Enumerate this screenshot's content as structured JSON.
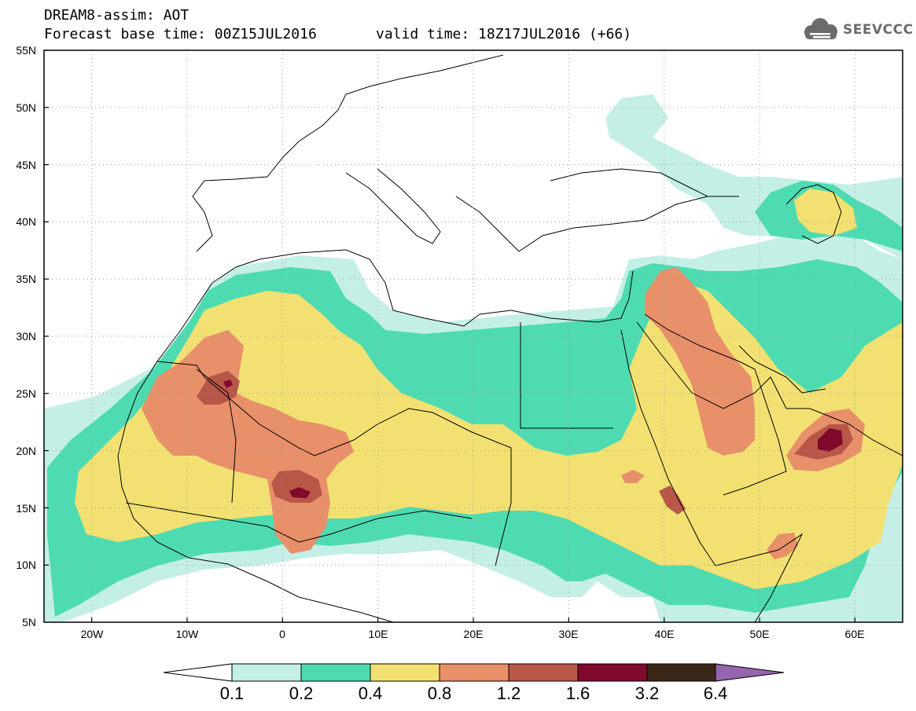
{
  "title": {
    "model_line": "DREAM8-assim: AOT",
    "base_time_line": "Forecast base time: 00Z15JUL2016",
    "valid_time_line": "valid time: 18Z17JUL2016 (+66)"
  },
  "logo": {
    "text": "SEEVCCC",
    "icon": "cloud-icon"
  },
  "map": {
    "lon_range": [
      -25,
      65
    ],
    "lat_range": [
      5,
      55
    ],
    "gridlines": "dotted",
    "lat_labels": [
      "55N",
      "50N",
      "45N",
      "40N",
      "35N",
      "30N",
      "25N",
      "20N",
      "15N",
      "10N",
      "5N"
    ],
    "lon_labels": [
      "20W",
      "10W",
      "0",
      "10E",
      "20E",
      "30E",
      "40E",
      "50E",
      "60E"
    ]
  },
  "colorbar": {
    "levels": [
      "0.1",
      "0.2",
      "0.4",
      "0.8",
      "1.2",
      "1.6",
      "3.2",
      "6.4"
    ],
    "colors": {
      "below": "#ffffff",
      "c1": "#c4efe6",
      "c2": "#4fdbb1",
      "c3": "#f2e172",
      "c4": "#e8906a",
      "c5": "#b85748",
      "c6": "#7f0a2c",
      "c7": "#3b2718",
      "above": "#9565b0"
    }
  }
}
